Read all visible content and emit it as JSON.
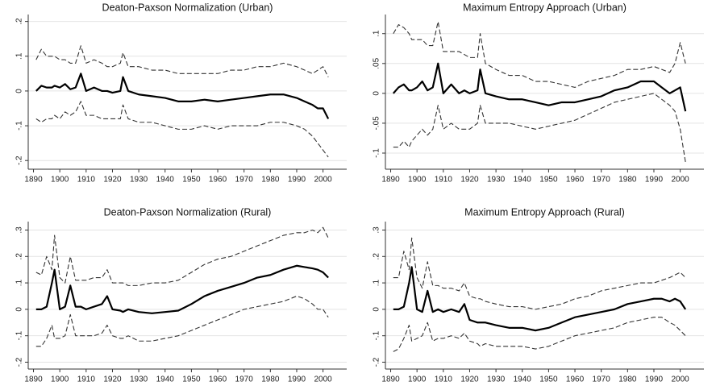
{
  "chart_data": [
    {
      "type": "line",
      "title": "Deaton-Paxson Normalization (Urban)",
      "x": [
        1891,
        1893,
        1895,
        1897,
        1898,
        1900,
        1902,
        1904,
        1906,
        1908,
        1910,
        1913,
        1916,
        1918,
        1920,
        1923,
        1924,
        1926,
        1930,
        1935,
        1940,
        1945,
        1950,
        1955,
        1960,
        1965,
        1970,
        1975,
        1980,
        1985,
        1990,
        1993,
        1996,
        1998,
        2000,
        2002
      ],
      "series": [
        {
          "color": "#000000",
          "dash": false,
          "values": [
            0.0,
            0.015,
            0.01,
            0.01,
            0.015,
            0.01,
            0.02,
            0.005,
            0.01,
            0.05,
            0.0,
            0.01,
            0.0,
            0.0,
            -0.005,
            0.0,
            0.04,
            0.0,
            -0.01,
            -0.015,
            -0.02,
            -0.03,
            -0.03,
            -0.025,
            -0.03,
            -0.025,
            -0.02,
            -0.015,
            -0.01,
            -0.01,
            -0.02,
            -0.03,
            -0.04,
            -0.05,
            -0.05,
            -0.08
          ]
        },
        {
          "color": "#333333",
          "dash": true,
          "values": [
            0.09,
            0.12,
            0.1,
            0.1,
            0.1,
            0.09,
            0.09,
            0.08,
            0.08,
            0.13,
            0.08,
            0.09,
            0.08,
            0.07,
            0.07,
            0.08,
            0.11,
            0.07,
            0.07,
            0.06,
            0.06,
            0.05,
            0.05,
            0.05,
            0.05,
            0.06,
            0.06,
            0.07,
            0.07,
            0.08,
            0.07,
            0.06,
            0.05,
            0.06,
            0.07,
            0.04
          ]
        },
        {
          "color": "#333333",
          "dash": true,
          "values": [
            -0.08,
            -0.09,
            -0.08,
            -0.08,
            -0.07,
            -0.08,
            -0.06,
            -0.07,
            -0.06,
            -0.03,
            -0.07,
            -0.07,
            -0.08,
            -0.08,
            -0.08,
            -0.08,
            -0.04,
            -0.08,
            -0.09,
            -0.09,
            -0.1,
            -0.11,
            -0.11,
            -0.1,
            -0.11,
            -0.1,
            -0.1,
            -0.1,
            -0.09,
            -0.09,
            -0.1,
            -0.11,
            -0.13,
            -0.15,
            -0.17,
            -0.19
          ]
        }
      ],
      "xlim": [
        1888,
        2009
      ],
      "xticks": [
        1890,
        1900,
        1910,
        1920,
        1930,
        1940,
        1950,
        1960,
        1970,
        1980,
        1990,
        2000
      ],
      "ylim": [
        -0.225,
        0.22
      ],
      "yticks": [
        {
          "value": -0.2,
          "label": "-.2"
        },
        {
          "value": -0.1,
          "label": "-.1"
        },
        0,
        {
          "value": 0.1,
          "label": ".1"
        },
        {
          "value": 0.2,
          "label": ".2"
        }
      ],
      "grid": true
    },
    {
      "type": "line",
      "title": "Maximum Entropy Approach (Urban)",
      "x": [
        1891,
        1893,
        1895,
        1897,
        1898,
        1900,
        1902,
        1904,
        1906,
        1908,
        1910,
        1913,
        1916,
        1918,
        1920,
        1923,
        1924,
        1926,
        1930,
        1935,
        1940,
        1945,
        1950,
        1955,
        1960,
        1965,
        1970,
        1975,
        1980,
        1985,
        1990,
        1993,
        1996,
        1998,
        2000,
        2002
      ],
      "series": [
        {
          "color": "#000000",
          "dash": false,
          "values": [
            0.0,
            0.01,
            0.015,
            0.005,
            0.005,
            0.01,
            0.02,
            0.005,
            0.01,
            0.05,
            0.0,
            0.015,
            0.0,
            0.005,
            0.0,
            0.005,
            0.04,
            0.0,
            -0.005,
            -0.01,
            -0.01,
            -0.015,
            -0.02,
            -0.015,
            -0.015,
            -0.01,
            -0.005,
            0.005,
            0.01,
            0.02,
            0.02,
            0.01,
            0.0,
            0.005,
            0.01,
            -0.03
          ]
        },
        {
          "color": "#333333",
          "dash": true,
          "values": [
            0.1,
            0.115,
            0.11,
            0.1,
            0.09,
            0.09,
            0.09,
            0.08,
            0.08,
            0.12,
            0.07,
            0.07,
            0.07,
            0.065,
            0.06,
            0.06,
            0.1,
            0.05,
            0.04,
            0.03,
            0.03,
            0.02,
            0.02,
            0.015,
            0.01,
            0.02,
            0.025,
            0.03,
            0.04,
            0.04,
            0.045,
            0.04,
            0.035,
            0.05,
            0.085,
            0.05
          ]
        },
        {
          "color": "#333333",
          "dash": true,
          "values": [
            -0.09,
            -0.09,
            -0.08,
            -0.09,
            -0.08,
            -0.07,
            -0.06,
            -0.07,
            -0.06,
            -0.02,
            -0.06,
            -0.05,
            -0.06,
            -0.06,
            -0.06,
            -0.05,
            -0.02,
            -0.05,
            -0.05,
            -0.05,
            -0.055,
            -0.06,
            -0.055,
            -0.05,
            -0.045,
            -0.035,
            -0.025,
            -0.015,
            -0.01,
            -0.005,
            0.0,
            -0.01,
            -0.02,
            -0.03,
            -0.06,
            -0.115
          ]
        }
      ],
      "xlim": [
        1888,
        2009
      ],
      "xticks": [
        1890,
        1900,
        1910,
        1920,
        1930,
        1940,
        1950,
        1960,
        1970,
        1980,
        1990,
        2000
      ],
      "ylim": [
        -0.127,
        0.132
      ],
      "yticks": [
        {
          "value": -0.1,
          "label": "-.1"
        },
        {
          "value": -0.05,
          "label": "-.05"
        },
        0,
        {
          "value": 0.05,
          "label": ".05"
        },
        {
          "value": 0.1,
          "label": ".1"
        }
      ],
      "grid": true
    },
    {
      "type": "line",
      "title": "Deaton-Paxson Normalization (Rural)",
      "x": [
        1891,
        1893,
        1895,
        1897,
        1898,
        1900,
        1902,
        1904,
        1906,
        1908,
        1910,
        1913,
        1916,
        1918,
        1920,
        1923,
        1924,
        1926,
        1930,
        1935,
        1940,
        1945,
        1950,
        1955,
        1960,
        1965,
        1970,
        1975,
        1980,
        1985,
        1990,
        1993,
        1996,
        1998,
        2000,
        2002
      ],
      "series": [
        {
          "color": "#000000",
          "dash": false,
          "values": [
            0.0,
            0.0,
            0.01,
            0.1,
            0.15,
            0.0,
            0.01,
            0.09,
            0.01,
            0.01,
            0.0,
            0.01,
            0.02,
            0.05,
            0.0,
            -0.005,
            -0.01,
            0.0,
            -0.01,
            -0.015,
            -0.01,
            -0.005,
            0.02,
            0.05,
            0.07,
            0.085,
            0.1,
            0.12,
            0.13,
            0.15,
            0.165,
            0.16,
            0.155,
            0.15,
            0.14,
            0.12
          ]
        },
        {
          "color": "#333333",
          "dash": true,
          "values": [
            0.14,
            0.13,
            0.2,
            0.15,
            0.28,
            0.12,
            0.1,
            0.2,
            0.11,
            0.11,
            0.11,
            0.12,
            0.12,
            0.15,
            0.1,
            0.1,
            0.1,
            0.09,
            0.09,
            0.1,
            0.1,
            0.11,
            0.14,
            0.17,
            0.19,
            0.2,
            0.22,
            0.24,
            0.26,
            0.28,
            0.29,
            0.29,
            0.3,
            0.29,
            0.31,
            0.27
          ]
        },
        {
          "color": "#333333",
          "dash": true,
          "values": [
            -0.14,
            -0.14,
            -0.11,
            -0.06,
            -0.11,
            -0.11,
            -0.1,
            -0.02,
            -0.1,
            -0.1,
            -0.1,
            -0.1,
            -0.09,
            -0.06,
            -0.1,
            -0.11,
            -0.11,
            -0.1,
            -0.12,
            -0.12,
            -0.11,
            -0.1,
            -0.08,
            -0.06,
            -0.04,
            -0.02,
            0.0,
            0.01,
            0.02,
            0.03,
            0.05,
            0.04,
            0.02,
            0.0,
            0.0,
            -0.03
          ]
        }
      ],
      "xlim": [
        1888,
        2009
      ],
      "xticks": [
        1890,
        1900,
        1910,
        1920,
        1930,
        1940,
        1950,
        1960,
        1970,
        1980,
        1990,
        2000
      ],
      "ylim": [
        -0.226,
        0.332
      ],
      "yticks": [
        {
          "value": -0.2,
          "label": "-.2"
        },
        {
          "value": -0.1,
          "label": "-.1"
        },
        0,
        {
          "value": 0.1,
          "label": ".1"
        },
        {
          "value": 0.2,
          "label": ".2"
        },
        {
          "value": 0.3,
          "label": ".3"
        }
      ],
      "grid": true
    },
    {
      "type": "line",
      "title": "Maximum Entropy Approach (Rural)",
      "x": [
        1891,
        1893,
        1895,
        1897,
        1898,
        1900,
        1902,
        1904,
        1906,
        1908,
        1910,
        1913,
        1916,
        1918,
        1920,
        1923,
        1924,
        1926,
        1930,
        1935,
        1940,
        1945,
        1950,
        1955,
        1960,
        1965,
        1970,
        1975,
        1980,
        1985,
        1990,
        1993,
        1996,
        1998,
        2000,
        2002
      ],
      "series": [
        {
          "color": "#000000",
          "dash": false,
          "values": [
            0.0,
            0.0,
            0.01,
            0.1,
            0.16,
            0.0,
            -0.01,
            0.07,
            -0.01,
            0.0,
            -0.01,
            0.0,
            -0.01,
            0.02,
            -0.04,
            -0.05,
            -0.05,
            -0.05,
            -0.06,
            -0.07,
            -0.07,
            -0.08,
            -0.07,
            -0.05,
            -0.03,
            -0.02,
            -0.01,
            0.0,
            0.02,
            0.03,
            0.04,
            0.04,
            0.03,
            0.04,
            0.03,
            0.0
          ]
        },
        {
          "color": "#333333",
          "dash": true,
          "values": [
            0.12,
            0.12,
            0.22,
            0.15,
            0.27,
            0.12,
            0.08,
            0.18,
            0.09,
            0.09,
            0.08,
            0.08,
            0.07,
            0.1,
            0.05,
            0.04,
            0.04,
            0.03,
            0.02,
            0.01,
            0.01,
            0.0,
            0.01,
            0.02,
            0.04,
            0.05,
            0.07,
            0.08,
            0.09,
            0.1,
            0.1,
            0.11,
            0.12,
            0.13,
            0.14,
            0.12
          ]
        },
        {
          "color": "#333333",
          "dash": true,
          "values": [
            -0.16,
            -0.15,
            -0.11,
            -0.06,
            -0.12,
            -0.11,
            -0.1,
            -0.05,
            -0.12,
            -0.11,
            -0.11,
            -0.1,
            -0.11,
            -0.09,
            -0.12,
            -0.13,
            -0.14,
            -0.13,
            -0.14,
            -0.14,
            -0.14,
            -0.15,
            -0.14,
            -0.12,
            -0.1,
            -0.09,
            -0.08,
            -0.07,
            -0.05,
            -0.04,
            -0.03,
            -0.03,
            -0.05,
            -0.06,
            -0.08,
            -0.1
          ]
        }
      ],
      "xlim": [
        1888,
        2009
      ],
      "xticks": [
        1890,
        1900,
        1910,
        1920,
        1930,
        1940,
        1950,
        1960,
        1970,
        1980,
        1990,
        2000
      ],
      "ylim": [
        -0.226,
        0.332
      ],
      "yticks": [
        {
          "value": -0.2,
          "label": "-.2"
        },
        {
          "value": -0.1,
          "label": "-.1"
        },
        0,
        {
          "value": 0.1,
          "label": ".1"
        },
        {
          "value": 0.2,
          "label": ".2"
        },
        {
          "value": 0.3,
          "label": ".3"
        }
      ],
      "grid": true
    }
  ]
}
